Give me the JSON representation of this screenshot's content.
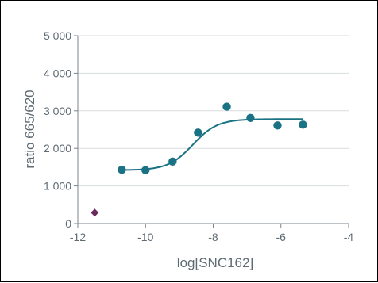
{
  "chart_data": {
    "type": "scatter",
    "xlabel": "log[SNC162]",
    "ylabel": "ratio 665/620",
    "xlim": [
      -12,
      -4
    ],
    "ylim": [
      0,
      5000
    ],
    "x_ticks": [
      -12,
      -10,
      -8,
      -6,
      -4
    ],
    "x_tick_labels": [
      "-12",
      "-10",
      "-8",
      "-6",
      "-4"
    ],
    "y_ticks": [
      0,
      1000,
      2000,
      3000,
      4000,
      5000
    ],
    "y_tick_labels": [
      "0",
      "1 000",
      "2 000",
      "3 000",
      "4 000",
      "5 000"
    ],
    "grid": {
      "horizontal": true,
      "vertical": false
    },
    "series": [
      {
        "marker": "circle",
        "color": "#1a7384",
        "x": [
          -10.7,
          -10.0,
          -9.2,
          -8.45,
          -7.6,
          -6.9,
          -6.1,
          -5.35
        ],
        "y": [
          1430,
          1420,
          1650,
          2420,
          3110,
          2810,
          2610,
          2630
        ]
      },
      {
        "marker": "diamond",
        "color": "#6b2a5c",
        "x": [
          -11.5
        ],
        "y": [
          290
        ]
      }
    ],
    "fit_curve": {
      "model": "sigmoidal dose-response",
      "color": "#1a7384",
      "bottom": 1420,
      "top": 2780,
      "log_ec50": -8.6,
      "hill_slope": 1.2,
      "x_range": [
        -10.7,
        -5.35
      ]
    }
  }
}
